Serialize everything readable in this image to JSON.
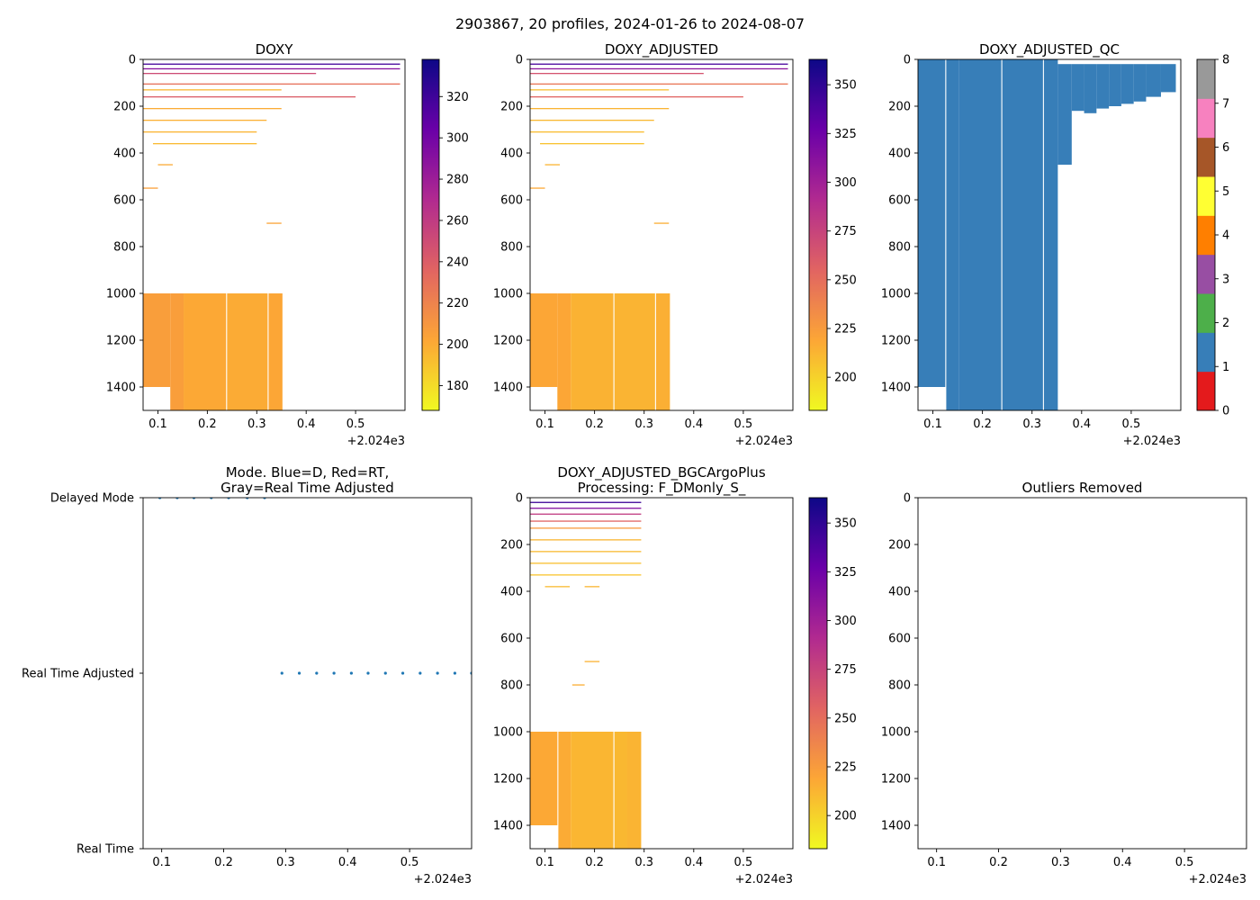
{
  "figure": {
    "suptitle": "2903867, 20 profiles, 2024-01-26 to 2024-08-07"
  },
  "colors": {
    "qc": [
      "#e41a1c",
      "#377eb8",
      "#4daf4a",
      "#984ea3",
      "#ff7f00",
      "#ffff33",
      "#a65628",
      "#f781bf",
      "#999999"
    ],
    "qc_fill": "#377eb8",
    "mode_dots": "#1f77b4",
    "plasma_stops": [
      "#f0f921",
      "#fca636",
      "#e16462",
      "#b12a90",
      "#6a00a8",
      "#0d0887"
    ]
  },
  "chart_data": [
    {
      "id": "doxy",
      "type": "heatmap",
      "title": "DOXY",
      "xlim": [
        0.07,
        0.6
      ],
      "xticks": [
        "0.1",
        "0.2",
        "0.3",
        "0.4",
        "0.5"
      ],
      "x_offset_label": "+2.024e3",
      "ylim": [
        0,
        1500
      ],
      "yticks": [
        "0",
        "200",
        "400",
        "600",
        "800",
        "1000",
        "1200",
        "1400"
      ],
      "y_inverted": true,
      "colorbar": {
        "min": 168,
        "max": 338,
        "ticks": [
          "180",
          "200",
          "220",
          "240",
          "260",
          "280",
          "300",
          "320"
        ]
      },
      "deep_blocks": [
        {
          "x0": 0.07,
          "x1": 0.125,
          "y0": 1000,
          "y1": 1400,
          "value": 206
        },
        {
          "x0": 0.07,
          "x1": 0.152,
          "y0": 1400,
          "y1": 1500,
          "value": null
        },
        {
          "x0": 0.125,
          "x1": 0.152,
          "y0": 1000,
          "y1": 1500,
          "value": 206
        },
        {
          "x0": 0.152,
          "x1": 0.238,
          "y0": 1000,
          "y1": 1500,
          "value": 201
        },
        {
          "x0": 0.24,
          "x1": 0.322,
          "y0": 1000,
          "y1": 1500,
          "value": 200
        },
        {
          "x0": 0.324,
          "x1": 0.352,
          "y0": 1000,
          "y1": 1500,
          "value": 202
        }
      ],
      "streaks": [
        {
          "x0": 0.07,
          "x1": 0.59,
          "y": 20,
          "value": 318
        },
        {
          "x0": 0.07,
          "x1": 0.59,
          "y": 40,
          "value": 290
        },
        {
          "x0": 0.07,
          "x1": 0.59,
          "y": 105,
          "value": 230
        },
        {
          "x0": 0.07,
          "x1": 0.42,
          "y": 60,
          "value": 250
        },
        {
          "x0": 0.07,
          "x1": 0.35,
          "y": 130,
          "value": 195
        },
        {
          "x0": 0.07,
          "x1": 0.5,
          "y": 160,
          "value": 240
        },
        {
          "x0": 0.07,
          "x1": 0.35,
          "y": 210,
          "value": 200
        },
        {
          "x0": 0.07,
          "x1": 0.32,
          "y": 260,
          "value": 198
        },
        {
          "x0": 0.07,
          "x1": 0.3,
          "y": 310,
          "value": 196
        },
        {
          "x0": 0.09,
          "x1": 0.3,
          "y": 360,
          "value": 194
        },
        {
          "x0": 0.1,
          "x1": 0.13,
          "y": 450,
          "value": 200
        },
        {
          "x0": 0.07,
          "x1": 0.1,
          "y": 550,
          "value": 205
        },
        {
          "x0": 0.32,
          "x1": 0.35,
          "y": 700,
          "value": 203
        }
      ]
    },
    {
      "id": "doxy_adj",
      "type": "heatmap",
      "title": "DOXY_ADJUSTED",
      "xlim": [
        0.07,
        0.6
      ],
      "xticks": [
        "0.1",
        "0.2",
        "0.3",
        "0.4",
        "0.5"
      ],
      "x_offset_label": "+2.024e3",
      "ylim": [
        0,
        1500
      ],
      "yticks": [
        "0",
        "200",
        "400",
        "600",
        "800",
        "1000",
        "1200",
        "1400"
      ],
      "y_inverted": true,
      "colorbar": {
        "min": 183,
        "max": 363,
        "ticks": [
          "200",
          "225",
          "250",
          "275",
          "300",
          "325",
          "350"
        ]
      },
      "deep_blocks": [
        {
          "x0": 0.07,
          "x1": 0.125,
          "y0": 1000,
          "y1": 1400,
          "value": 219
        },
        {
          "x0": 0.07,
          "x1": 0.152,
          "y0": 1400,
          "y1": 1500,
          "value": null
        },
        {
          "x0": 0.125,
          "x1": 0.152,
          "y0": 1000,
          "y1": 1500,
          "value": 219
        },
        {
          "x0": 0.152,
          "x1": 0.238,
          "y0": 1000,
          "y1": 1500,
          "value": 214
        },
        {
          "x0": 0.24,
          "x1": 0.322,
          "y0": 1000,
          "y1": 1500,
          "value": 213
        },
        {
          "x0": 0.324,
          "x1": 0.352,
          "y0": 1000,
          "y1": 1500,
          "value": 215
        }
      ],
      "streaks": [
        {
          "x0": 0.07,
          "x1": 0.59,
          "y": 20,
          "value": 340
        },
        {
          "x0": 0.07,
          "x1": 0.59,
          "y": 40,
          "value": 310
        },
        {
          "x0": 0.07,
          "x1": 0.59,
          "y": 105,
          "value": 245
        },
        {
          "x0": 0.07,
          "x1": 0.42,
          "y": 60,
          "value": 265
        },
        {
          "x0": 0.07,
          "x1": 0.35,
          "y": 130,
          "value": 208
        },
        {
          "x0": 0.07,
          "x1": 0.5,
          "y": 160,
          "value": 255
        },
        {
          "x0": 0.07,
          "x1": 0.35,
          "y": 210,
          "value": 213
        },
        {
          "x0": 0.07,
          "x1": 0.32,
          "y": 260,
          "value": 211
        },
        {
          "x0": 0.07,
          "x1": 0.3,
          "y": 310,
          "value": 209
        },
        {
          "x0": 0.09,
          "x1": 0.3,
          "y": 360,
          "value": 207
        },
        {
          "x0": 0.1,
          "x1": 0.13,
          "y": 450,
          "value": 213
        },
        {
          "x0": 0.07,
          "x1": 0.1,
          "y": 550,
          "value": 218
        },
        {
          "x0": 0.32,
          "x1": 0.35,
          "y": 700,
          "value": 216
        }
      ]
    },
    {
      "id": "doxy_qc",
      "type": "heatmap",
      "title": "DOXY_ADJUSTED_QC",
      "xlim": [
        0.07,
        0.6
      ],
      "xticks": [
        "0.1",
        "0.2",
        "0.3",
        "0.4",
        "0.5"
      ],
      "x_offset_label": "+2.024e3",
      "ylim": [
        0,
        1500
      ],
      "yticks": [
        "0",
        "200",
        "400",
        "600",
        "800",
        "1000",
        "1200",
        "1400"
      ],
      "y_inverted": true,
      "colorbar": {
        "min": 0,
        "max": 8,
        "ticks": [
          "0",
          "1",
          "2",
          "3",
          "4",
          "5",
          "6",
          "7",
          "8"
        ],
        "discrete": true
      },
      "qc_value": 1,
      "qc_columns": [
        {
          "x0": 0.07,
          "x1": 0.125,
          "top": 0,
          "bottom": 1400
        },
        {
          "x0": 0.127,
          "x1": 0.152,
          "top": 0,
          "bottom": 1500
        },
        {
          "x0": 0.152,
          "x1": 0.238,
          "top": 0,
          "bottom": 1500
        },
        {
          "x0": 0.24,
          "x1": 0.322,
          "top": 0,
          "bottom": 1500
        },
        {
          "x0": 0.324,
          "x1": 0.352,
          "top": 0,
          "bottom": 1500
        },
        {
          "x0": 0.352,
          "x1": 0.38,
          "top": 20,
          "bottom": 450
        },
        {
          "x0": 0.38,
          "x1": 0.405,
          "top": 20,
          "bottom": 220
        },
        {
          "x0": 0.405,
          "x1": 0.43,
          "top": 20,
          "bottom": 230
        },
        {
          "x0": 0.43,
          "x1": 0.455,
          "top": 20,
          "bottom": 210
        },
        {
          "x0": 0.455,
          "x1": 0.48,
          "top": 20,
          "bottom": 200
        },
        {
          "x0": 0.48,
          "x1": 0.505,
          "top": 20,
          "bottom": 190
        },
        {
          "x0": 0.505,
          "x1": 0.53,
          "top": 20,
          "bottom": 180
        },
        {
          "x0": 0.53,
          "x1": 0.56,
          "top": 20,
          "bottom": 160
        },
        {
          "x0": 0.56,
          "x1": 0.59,
          "top": 20,
          "bottom": 140
        }
      ]
    },
    {
      "id": "mode",
      "type": "scatter",
      "title": "Mode. Blue=D, Red=RT,\nGray=Real Time Adjusted",
      "xlim": [
        0.07,
        0.6
      ],
      "xticks": [
        "0.1",
        "0.2",
        "0.3",
        "0.4",
        "0.5"
      ],
      "x_offset_label": "+2.024e3",
      "ylim": [
        0,
        2
      ],
      "ytick_labels": [
        "Real Time",
        "Real Time Adjusted",
        "Delayed Mode"
      ],
      "points": [
        {
          "x": 0.097,
          "y": 2
        },
        {
          "x": 0.125,
          "y": 2
        },
        {
          "x": 0.152,
          "y": 2
        },
        {
          "x": 0.18,
          "y": 2
        },
        {
          "x": 0.208,
          "y": 2
        },
        {
          "x": 0.238,
          "y": 2
        },
        {
          "x": 0.266,
          "y": 2
        },
        {
          "x": 0.294,
          "y": 1
        },
        {
          "x": 0.322,
          "y": 1
        },
        {
          "x": 0.35,
          "y": 1
        },
        {
          "x": 0.378,
          "y": 1
        },
        {
          "x": 0.406,
          "y": 1
        },
        {
          "x": 0.433,
          "y": 1
        },
        {
          "x": 0.461,
          "y": 1
        },
        {
          "x": 0.489,
          "y": 1
        },
        {
          "x": 0.517,
          "y": 1
        },
        {
          "x": 0.545,
          "y": 1
        },
        {
          "x": 0.573,
          "y": 1
        },
        {
          "x": 0.6,
          "y": 1
        }
      ]
    },
    {
      "id": "doxy_plus",
      "type": "heatmap",
      "title": "DOXY_ADJUSTED_BGCArgoPlus\nProcessing: F_DMonly_S_",
      "xlim": [
        0.07,
        0.6
      ],
      "xticks": [
        "0.1",
        "0.2",
        "0.3",
        "0.4",
        "0.5"
      ],
      "x_offset_label": "+2.024e3",
      "ylim": [
        0,
        1500
      ],
      "yticks": [
        "0",
        "200",
        "400",
        "600",
        "800",
        "1000",
        "1200",
        "1400"
      ],
      "y_inverted": true,
      "colorbar": {
        "min": 183,
        "max": 363,
        "ticks": [
          "200",
          "225",
          "250",
          "275",
          "300",
          "325",
          "350"
        ]
      },
      "deep_blocks": [
        {
          "x0": 0.07,
          "x1": 0.125,
          "y0": 1000,
          "y1": 1400,
          "value": 218
        },
        {
          "x0": 0.07,
          "x1": 0.152,
          "y0": 1400,
          "y1": 1500,
          "value": null
        },
        {
          "x0": 0.127,
          "x1": 0.152,
          "y0": 1000,
          "y1": 1500,
          "value": 217
        },
        {
          "x0": 0.152,
          "x1": 0.238,
          "y0": 1000,
          "y1": 1500,
          "value": 212
        },
        {
          "x0": 0.24,
          "x1": 0.266,
          "y0": 1000,
          "y1": 1500,
          "value": 211
        },
        {
          "x0": 0.266,
          "x1": 0.294,
          "y0": 1000,
          "y1": 1500,
          "value": 213
        }
      ],
      "streaks": [
        {
          "x0": 0.07,
          "x1": 0.294,
          "y": 20,
          "value": 345
        },
        {
          "x0": 0.07,
          "x1": 0.294,
          "y": 45,
          "value": 315
        },
        {
          "x0": 0.07,
          "x1": 0.294,
          "y": 70,
          "value": 280
        },
        {
          "x0": 0.07,
          "x1": 0.294,
          "y": 100,
          "value": 255
        },
        {
          "x0": 0.07,
          "x1": 0.294,
          "y": 130,
          "value": 225
        },
        {
          "x0": 0.07,
          "x1": 0.294,
          "y": 180,
          "value": 212
        },
        {
          "x0": 0.07,
          "x1": 0.294,
          "y": 230,
          "value": 210
        },
        {
          "x0": 0.07,
          "x1": 0.294,
          "y": 280,
          "value": 208
        },
        {
          "x0": 0.07,
          "x1": 0.294,
          "y": 330,
          "value": 206
        },
        {
          "x0": 0.1,
          "x1": 0.15,
          "y": 380,
          "value": 210
        },
        {
          "x0": 0.18,
          "x1": 0.21,
          "y": 380,
          "value": 212
        },
        {
          "x0": 0.18,
          "x1": 0.21,
          "y": 700,
          "value": 214
        },
        {
          "x0": 0.155,
          "x1": 0.18,
          "y": 800,
          "value": 216
        }
      ]
    },
    {
      "id": "outliers",
      "type": "scatter",
      "title": "Outliers Removed",
      "xlim": [
        0.07,
        0.6
      ],
      "xticks": [
        "0.1",
        "0.2",
        "0.3",
        "0.4",
        "0.5"
      ],
      "x_offset_label": "+2.024e3",
      "ylim": [
        0,
        1500
      ],
      "yticks": [
        "0",
        "200",
        "400",
        "600",
        "800",
        "1000",
        "1200",
        "1400"
      ],
      "y_inverted": true,
      "points": []
    }
  ]
}
